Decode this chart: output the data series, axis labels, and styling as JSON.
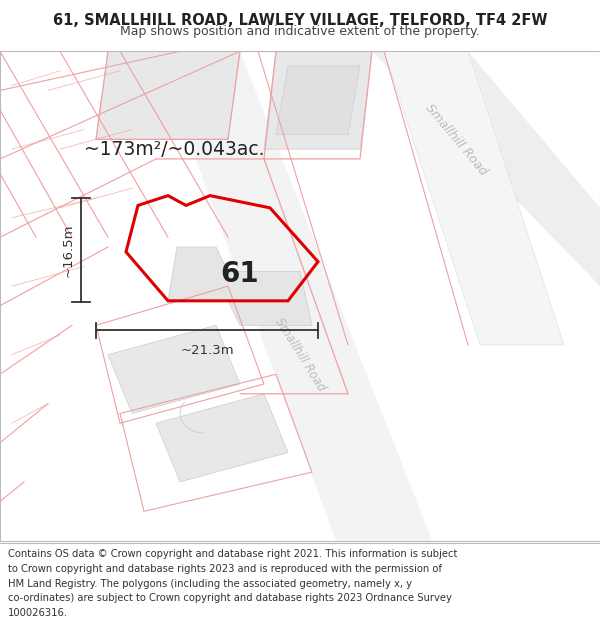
{
  "title": "61, SMALLHILL ROAD, LAWLEY VILLAGE, TELFORD, TF4 2FW",
  "subtitle": "Map shows position and indicative extent of the property.",
  "footer_lines": [
    "Contains OS data © Crown copyright and database right 2021. This information is subject",
    "to Crown copyright and database rights 2023 and is reproduced with the permission of",
    "HM Land Registry. The polygons (including the associated geometry, namely x, y",
    "co-ordinates) are subject to Crown copyright and database rights 2023 Ordnance Survey",
    "100026316."
  ],
  "area_text": "~173m²/~0.043ac.",
  "label_61": "61",
  "dim_h": "~16.5m",
  "dim_w": "~21.3m",
  "road_label_upper": "Smallhill Road",
  "road_label_lower": "Smallhill Road",
  "title_fontsize": 10.5,
  "subtitle_fontsize": 9,
  "footer_fontsize": 7.2,
  "map_bg": "#ffffff",
  "building_fill": "#e8e8e8",
  "building_edge": "#cccccc",
  "parcel_line_color": "#f0a0a0",
  "road_fill": "#f0f0f0",
  "road_edge": "#d0d0d0",
  "red_poly_color": "#dd0000",
  "dim_line_color": "#333333",
  "road_label_color": "#bbbbbb",
  "text_color": "#222222",
  "footer_text_color": "#333333"
}
